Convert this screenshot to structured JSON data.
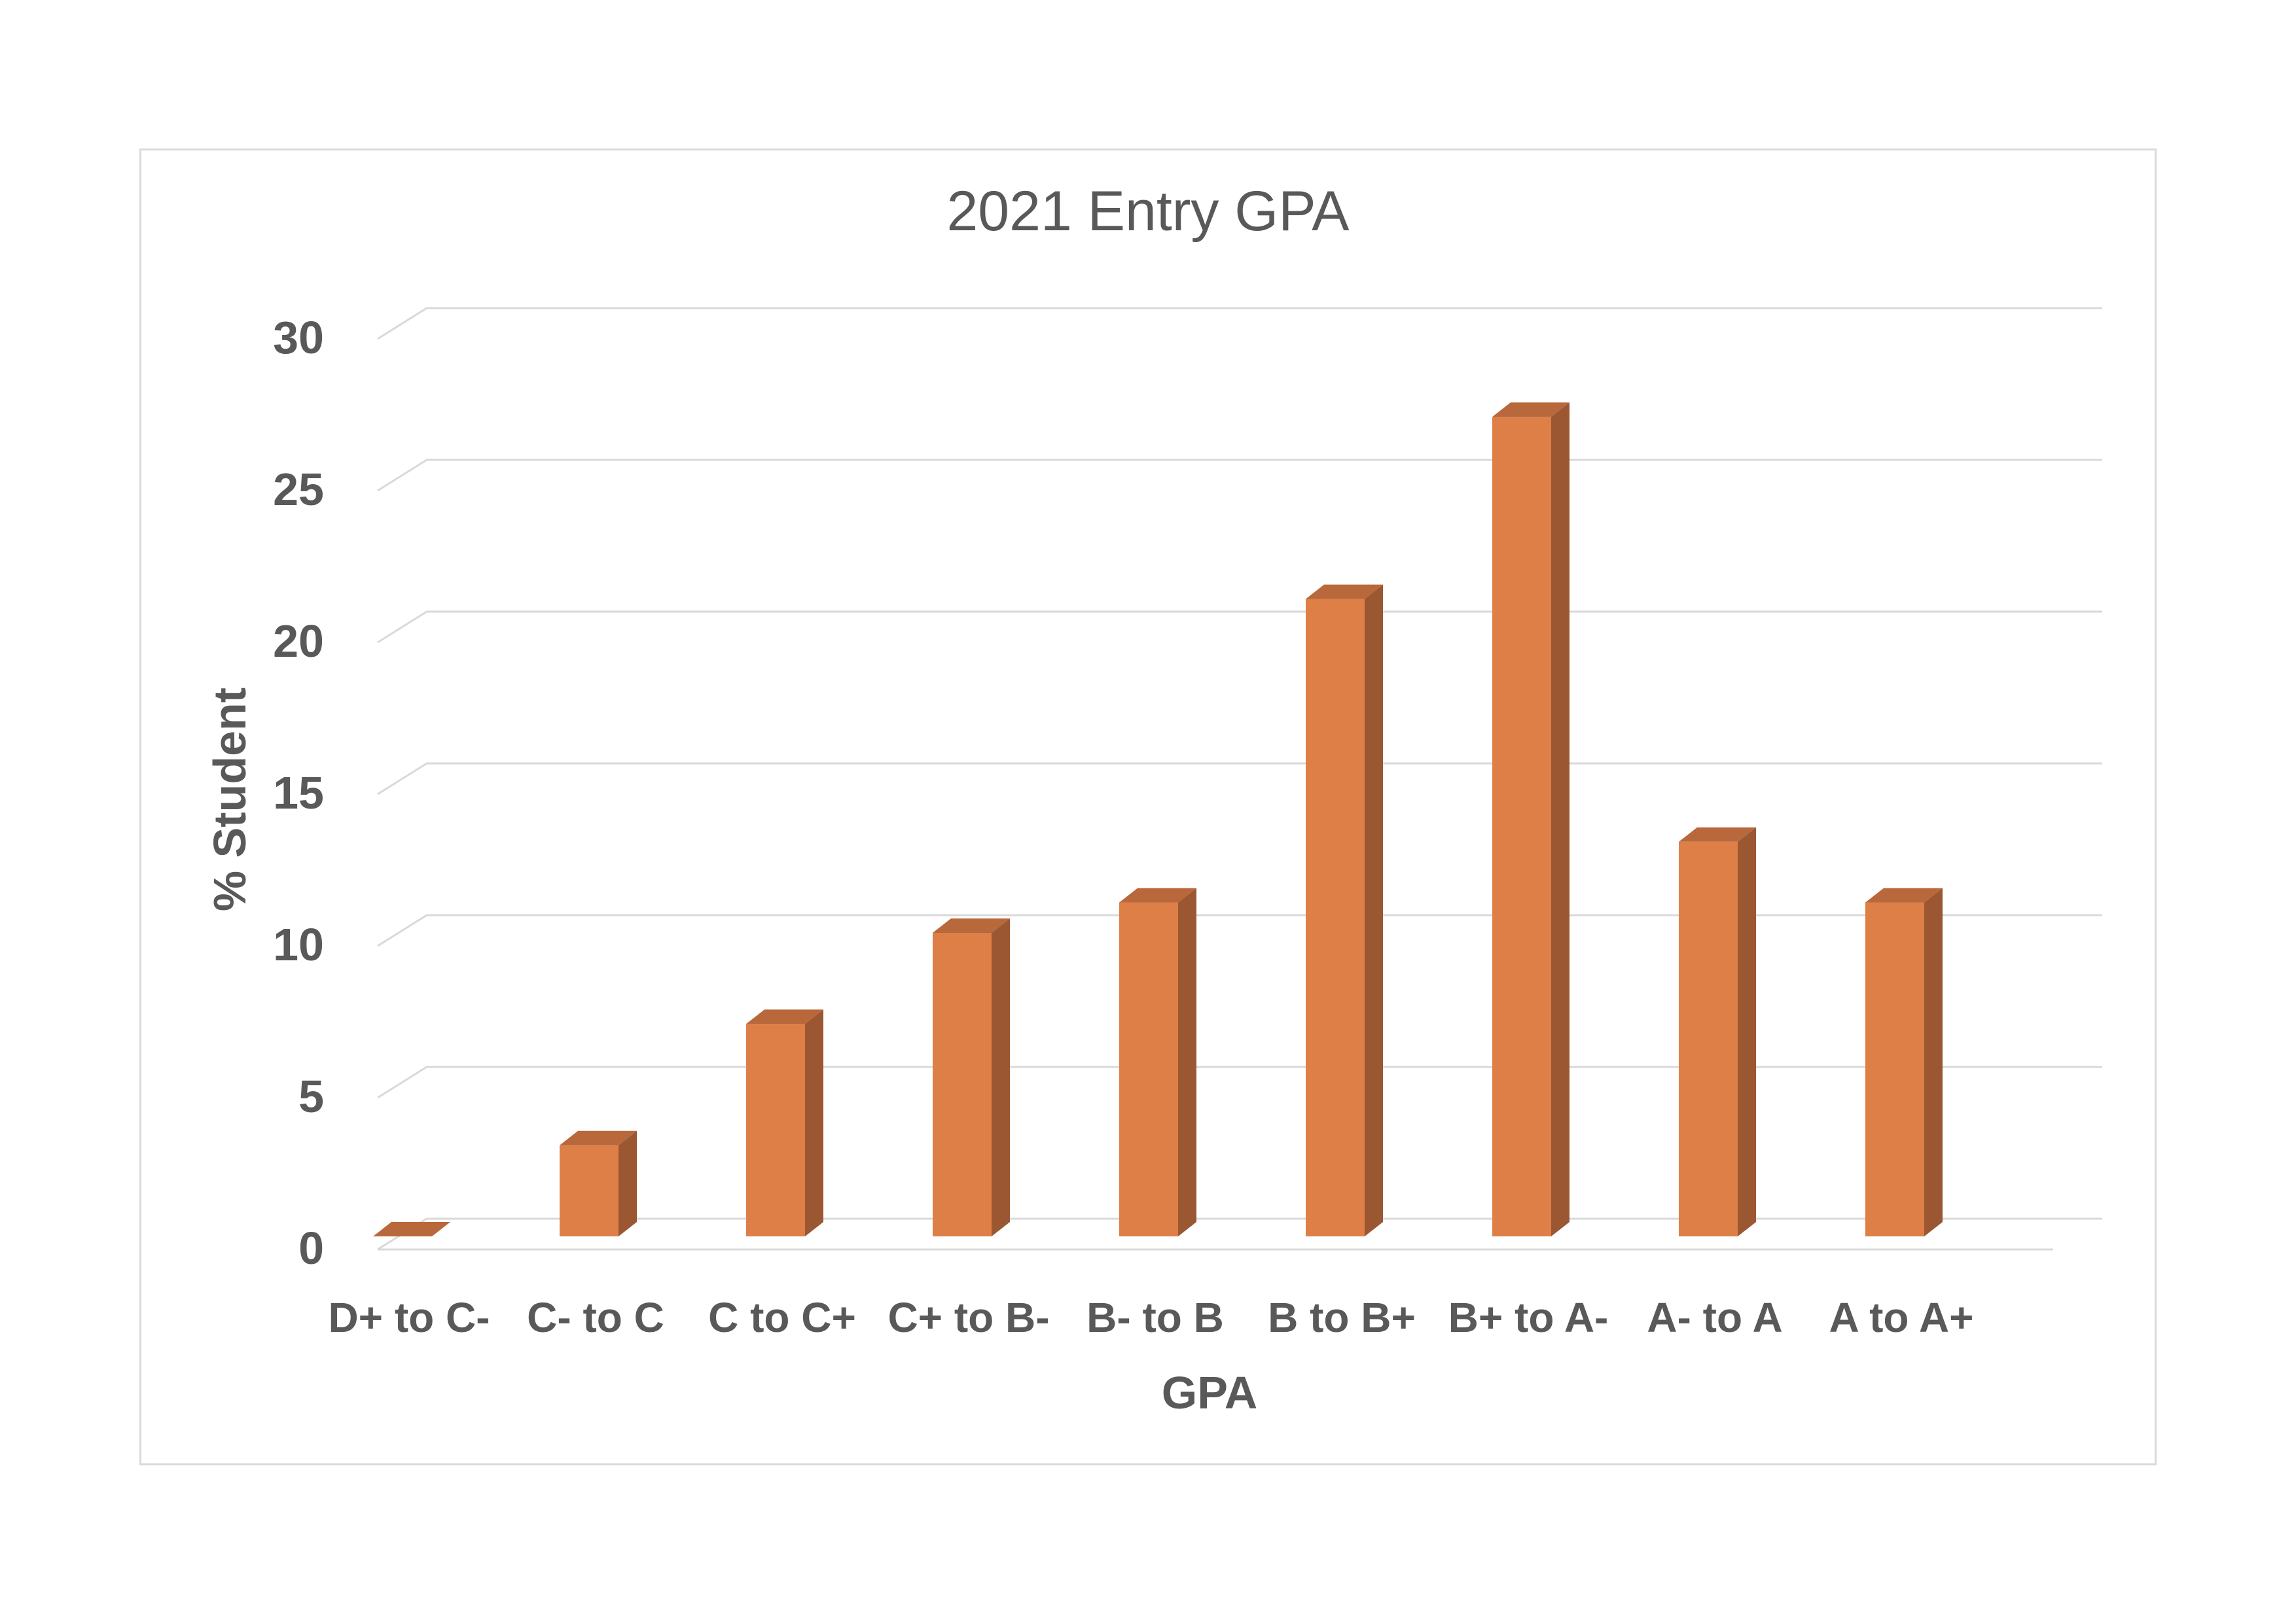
{
  "chart_data": {
    "type": "bar",
    "title": "2021 Entry GPA",
    "xlabel": "GPA",
    "ylabel": "% Student",
    "categories": [
      "D+ to C-",
      "C- to C",
      "C to C+",
      "C+ to B-",
      "B- to B",
      "B to B+",
      "B+ to A-",
      "A- to A",
      "A to A+"
    ],
    "values": [
      0,
      3,
      7,
      10,
      11,
      21,
      27,
      13,
      11
    ],
    "yticks": [
      0,
      5,
      10,
      15,
      20,
      25,
      30
    ],
    "ylim": [
      0,
      30
    ],
    "grid": true,
    "legend": "none",
    "style": "3d-column",
    "colors": {
      "bar_front": "#dd7f47",
      "bar_side": "#9b5731",
      "bar_top": "#b8683a",
      "grid": "#d9d9d9",
      "text": "#595959"
    }
  }
}
